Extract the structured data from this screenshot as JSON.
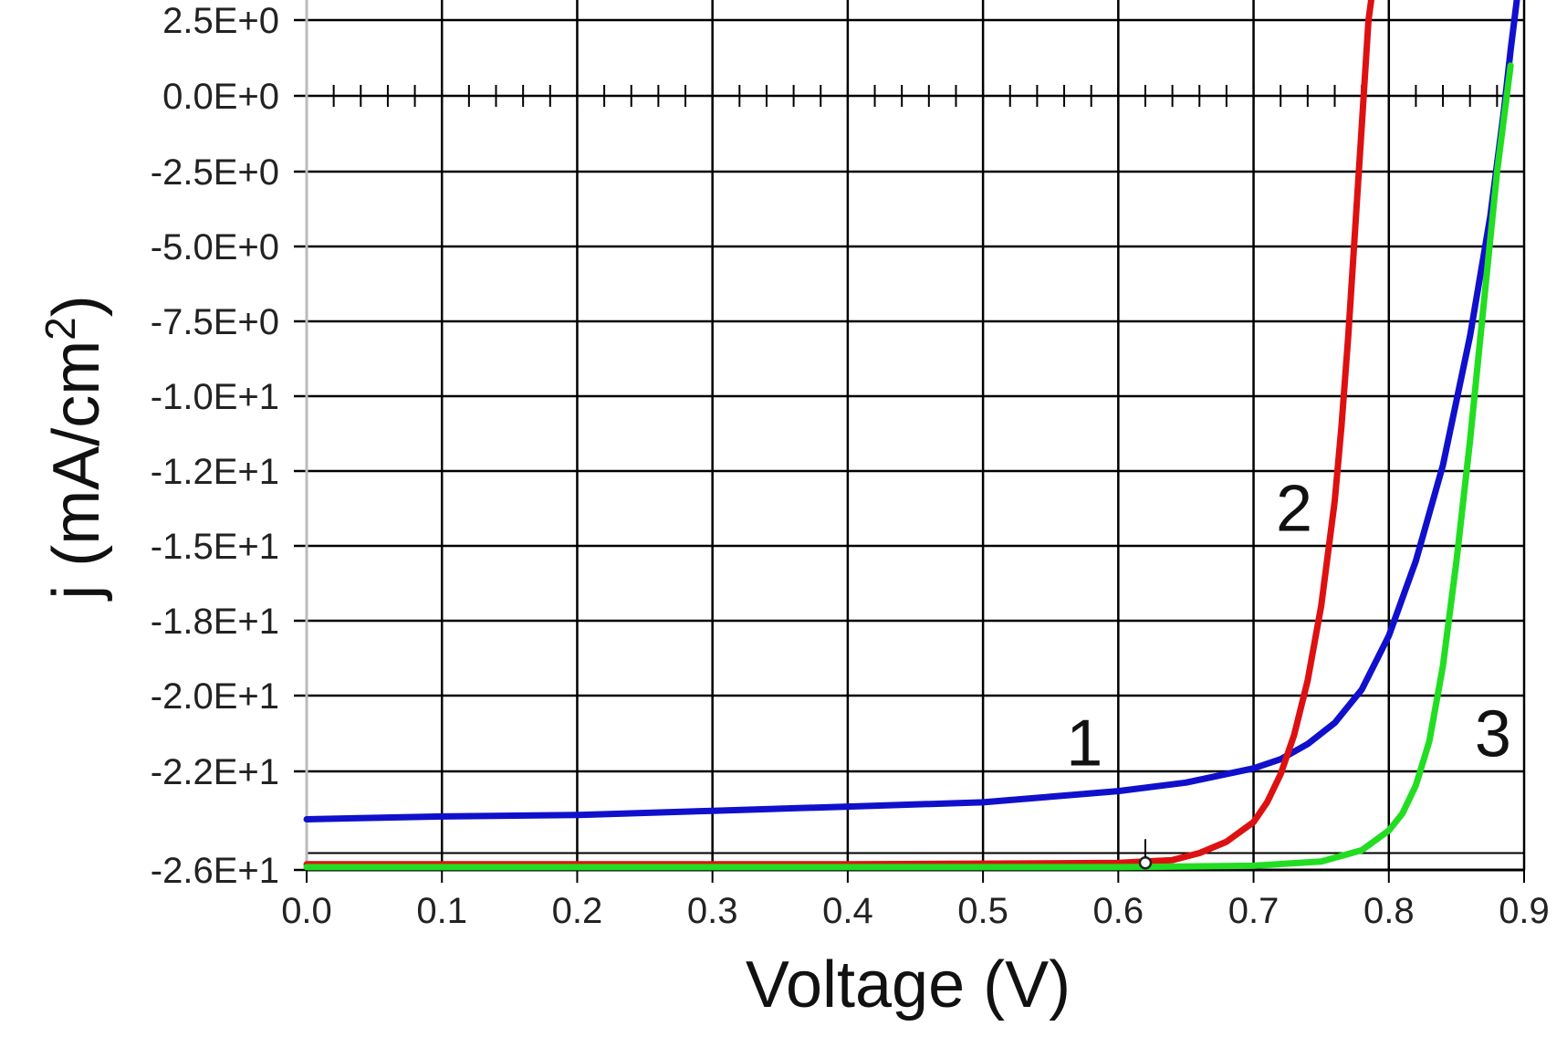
{
  "chart_data": {
    "type": "line",
    "xlabel": "Voltage (V)",
    "ylabel": "j (mA/cm2)",
    "ylabel_parts": {
      "main": "j (mA/cm",
      "sup": "2",
      "close": ")"
    },
    "xlim": [
      0.0,
      0.9
    ],
    "grid": true,
    "legend": "none",
    "x_ticks": [
      {
        "value": 0.0,
        "label": "0.0"
      },
      {
        "value": 0.1,
        "label": "0.1"
      },
      {
        "value": 0.2,
        "label": "0.2"
      },
      {
        "value": 0.3,
        "label": "0.3"
      },
      {
        "value": 0.4,
        "label": "0.4"
      },
      {
        "value": 0.5,
        "label": "0.5"
      },
      {
        "value": 0.6,
        "label": "0.6"
      },
      {
        "value": 0.7,
        "label": "0.7"
      },
      {
        "value": 0.8,
        "label": "0.8"
      },
      {
        "value": 0.9,
        "label": "0.9"
      }
    ],
    "y_ticks": [
      {
        "value": 2.5,
        "label": "2.5E+0"
      },
      {
        "value": 0.0,
        "label": "0.0E+0"
      },
      {
        "value": -2.5,
        "label": "-2.5E+0"
      },
      {
        "value": -5.0,
        "label": "-5.0E+0"
      },
      {
        "value": -7.5,
        "label": "-7.5E+0"
      },
      {
        "value": -10.0,
        "label": "-1.0E+1"
      },
      {
        "value": -12.5,
        "label": "-1.2E+1"
      },
      {
        "value": -15.0,
        "label": "-1.5E+1"
      },
      {
        "value": -17.5,
        "label": "-1.8E+1"
      },
      {
        "value": -20.0,
        "label": "-2.0E+1"
      },
      {
        "value": -22.5,
        "label": "-2.2E+1"
      },
      {
        "value": -26.0,
        "label": "-2.6E+1"
      }
    ],
    "series": [
      {
        "label": "1",
        "color": "#1010cc",
        "points": [
          [
            0.0,
            -24.2
          ],
          [
            0.1,
            -24.1
          ],
          [
            0.2,
            -24.05
          ],
          [
            0.3,
            -23.9
          ],
          [
            0.4,
            -23.75
          ],
          [
            0.5,
            -23.6
          ],
          [
            0.55,
            -23.4
          ],
          [
            0.6,
            -23.2
          ],
          [
            0.65,
            -22.9
          ],
          [
            0.7,
            -22.4
          ],
          [
            0.72,
            -22.1
          ],
          [
            0.74,
            -21.6
          ],
          [
            0.76,
            -20.9
          ],
          [
            0.78,
            -19.8
          ],
          [
            0.8,
            -18.0
          ],
          [
            0.82,
            -15.5
          ],
          [
            0.84,
            -12.3
          ],
          [
            0.86,
            -8.0
          ],
          [
            0.875,
            -4.0
          ],
          [
            0.885,
            -0.5
          ],
          [
            0.89,
            1.5
          ],
          [
            0.895,
            3.3
          ]
        ],
        "label_anchor": [
          0.575,
          -22.3
        ]
      },
      {
        "label": "2",
        "color": "#dd1111",
        "points": [
          [
            0.0,
            -25.8
          ],
          [
            0.2,
            -25.8
          ],
          [
            0.4,
            -25.8
          ],
          [
            0.6,
            -25.75
          ],
          [
            0.64,
            -25.65
          ],
          [
            0.66,
            -25.4
          ],
          [
            0.68,
            -25.0
          ],
          [
            0.7,
            -24.3
          ],
          [
            0.71,
            -23.6
          ],
          [
            0.72,
            -22.6
          ],
          [
            0.73,
            -21.3
          ],
          [
            0.74,
            -19.5
          ],
          [
            0.75,
            -17.0
          ],
          [
            0.76,
            -13.5
          ],
          [
            0.765,
            -11.0
          ],
          [
            0.77,
            -8.0
          ],
          [
            0.775,
            -4.5
          ],
          [
            0.78,
            -1.0
          ],
          [
            0.785,
            2.5
          ],
          [
            0.788,
            3.5
          ]
        ],
        "label_anchor": [
          0.73,
          -14.5
        ]
      },
      {
        "label": "3",
        "color": "#22dd22",
        "points": [
          [
            0.0,
            -25.9
          ],
          [
            0.2,
            -25.9
          ],
          [
            0.4,
            -25.9
          ],
          [
            0.6,
            -25.9
          ],
          [
            0.7,
            -25.85
          ],
          [
            0.75,
            -25.7
          ],
          [
            0.78,
            -25.3
          ],
          [
            0.8,
            -24.6
          ],
          [
            0.81,
            -24.0
          ],
          [
            0.82,
            -23.0
          ],
          [
            0.83,
            -21.5
          ],
          [
            0.84,
            -19.0
          ],
          [
            0.85,
            -15.5
          ],
          [
            0.86,
            -11.5
          ],
          [
            0.87,
            -7.0
          ],
          [
            0.88,
            -2.5
          ],
          [
            0.89,
            1.0
          ]
        ],
        "label_anchor": [
          0.877,
          -22.0
        ]
      }
    ],
    "marker_point": [
      0.62,
      -25.75
    ]
  }
}
